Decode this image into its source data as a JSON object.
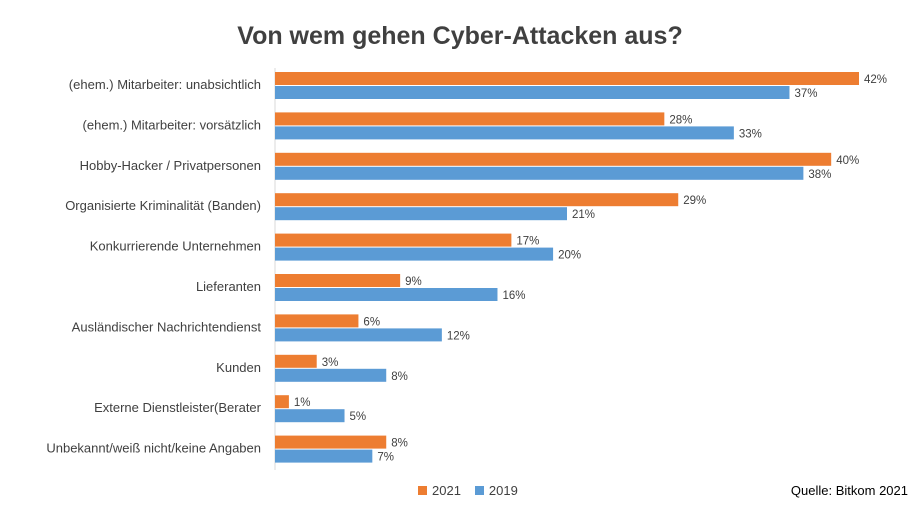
{
  "title": "Von wem gehen Cyber-Attacken aus?",
  "source": "Quelle: Bitkom 2021",
  "colors": {
    "2021": "#ED7D31",
    "2019": "#5B9BD5"
  },
  "chart_data": {
    "type": "bar",
    "orientation": "horizontal",
    "title": "Von wem gehen Cyber-Attacken aus?",
    "xlabel": "",
    "ylabel": "",
    "xlim": [
      0,
      42
    ],
    "grid": false,
    "legend_position": "bottom",
    "categories": [
      "(ehem.) Mitarbeiter: unabsichtlich",
      "(ehem.) Mitarbeiter: vorsätzlich",
      "Hobby-Hacker / Privatpersonen",
      "Organisierte Kriminalität (Banden)",
      "Konkurrierende Unternehmen",
      "Lieferanten",
      "Ausländischer Nachrichtendienst",
      "Kunden",
      "Externe Dienstleister(Berater",
      "Unbekannt/weiß nicht/keine Angaben"
    ],
    "series": [
      {
        "name": "2021",
        "values": [
          42,
          28,
          40,
          29,
          17,
          9,
          6,
          3,
          1,
          8
        ],
        "labels": [
          "42%",
          "28%",
          "40%",
          "29%",
          "17%",
          "9%",
          "6%",
          "3%",
          "1%",
          "8%"
        ]
      },
      {
        "name": "2019",
        "values": [
          37,
          33,
          38,
          21,
          20,
          16,
          12,
          8,
          5,
          7
        ],
        "labels": [
          "37%",
          "33%",
          "38%",
          "21%",
          "20%",
          "16%",
          "12%",
          "8%",
          "5%",
          "7%"
        ]
      }
    ]
  }
}
